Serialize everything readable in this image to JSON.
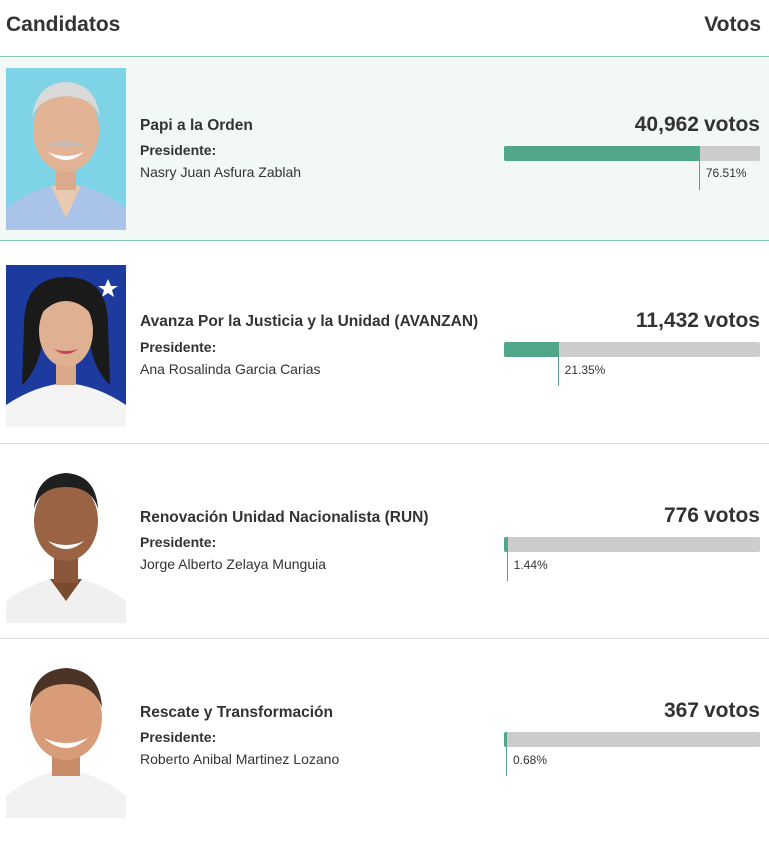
{
  "header": {
    "left": "Candidatos",
    "right": "Votos"
  },
  "rows": [
    {
      "party": "Papi a la Orden",
      "role": "Presidente:",
      "candidate": "Nasry Juan Asfura Zablah",
      "votes": "40,962",
      "unit": "votos",
      "percent_label": "76.51%",
      "percent": 76.51,
      "photo_bg": "#7fd3e6"
    },
    {
      "party": "Avanza Por la Justicia y la Unidad (AVANZAN)",
      "role": "Presidente:",
      "candidate": "Ana Rosalinda Garcia Carias",
      "votes": "11,432",
      "unit": "votos",
      "percent_label": "21.35%",
      "percent": 21.35,
      "photo_bg": "#1d3a9e"
    },
    {
      "party": "Renovación Unidad Nacionalista (RUN)",
      "role": "Presidente:",
      "candidate": "Jorge Alberto Zelaya Munguia",
      "votes": "776",
      "unit": "votos",
      "percent_label": "1.44%",
      "percent": 1.44,
      "photo_bg": "#ffffff"
    },
    {
      "party": "Rescate y Transformación",
      "role": "Presidente:",
      "candidate": "Roberto Anibal Martinez Lozano",
      "votes": "367",
      "unit": "votos",
      "percent_label": "0.68%",
      "percent": 0.68,
      "photo_bg": "#ffffff"
    }
  ],
  "colors": {
    "accent": "#4fa688",
    "bar_track": "#cccccc",
    "highlight_bg": "#f2f8f6"
  }
}
